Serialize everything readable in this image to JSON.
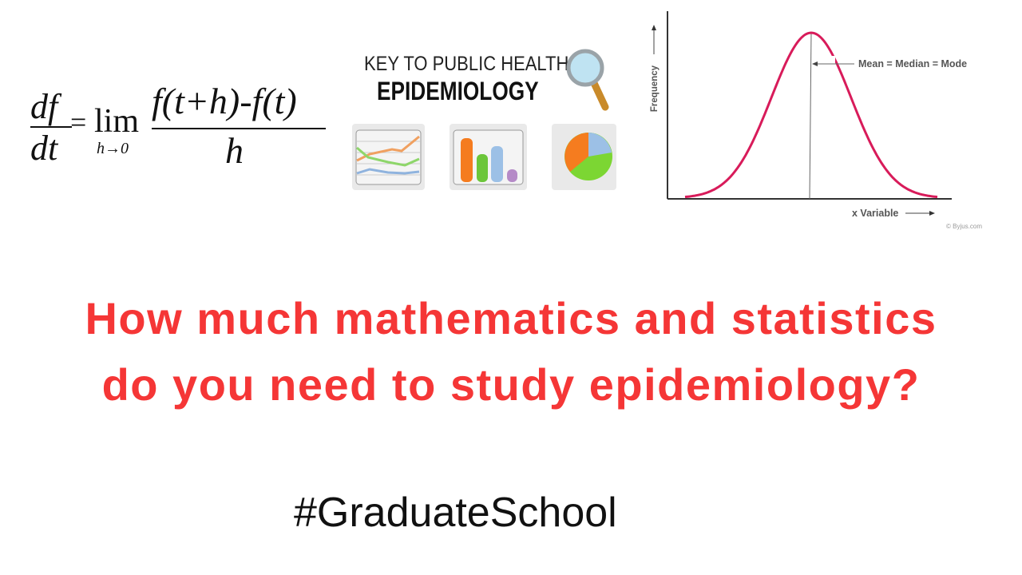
{
  "formula": {
    "lhs_num": "df",
    "lhs_den": "dt",
    "equals": "=",
    "lim": "lim",
    "lim_sub": "h→0",
    "rhs_num": "f(t+h)-f(t)",
    "rhs_den": "h"
  },
  "epi_graphic": {
    "line1": "KEY TO PUBLIC HEALTH:",
    "line2": "EPIDEMIOLOGY",
    "icons": [
      "magnifier-icon",
      "line-chart-icon",
      "bar-chart-icon",
      "pie-chart-icon"
    ]
  },
  "normal_curve": {
    "y_label": "Frequency",
    "x_label": "x Variable",
    "annotation": "Mean = Median = Mode",
    "credit": "© Byjus.com",
    "curve_color": "#d81b5a"
  },
  "headline": {
    "line1": "How much mathematics and statistics",
    "line2": "do you need to study epidemiology?",
    "color": "#f53636"
  },
  "hashtag": "#GraduateSchool"
}
